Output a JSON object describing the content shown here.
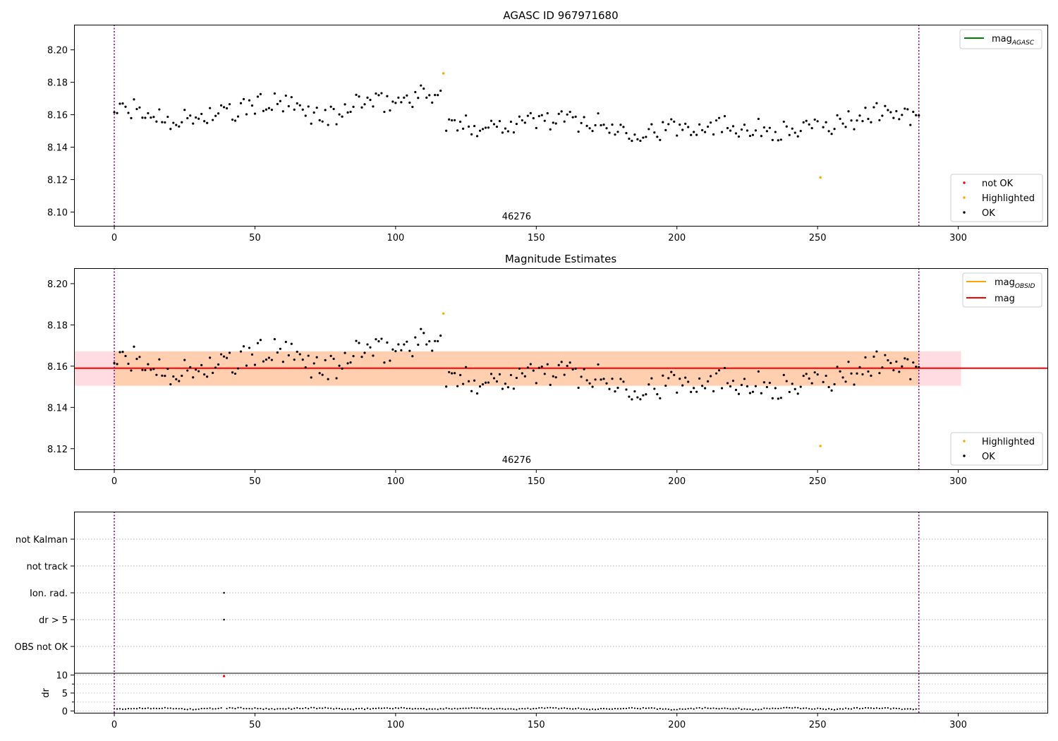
{
  "chart_data": [
    {
      "type": "scatter",
      "title": "AGASC ID 967971680",
      "xlim": [
        -14.3,
        331.7
      ],
      "ylim": [
        8.0915,
        8.2155
      ],
      "x_ticks": [
        0,
        50,
        100,
        150,
        200,
        250,
        300
      ],
      "y_ticks": [
        8.1,
        8.12,
        8.14,
        8.16,
        8.18,
        8.2
      ],
      "y_tick_labels": [
        "8.10",
        "8.12",
        "8.14",
        "8.16",
        "8.18",
        "8.20"
      ],
      "annotation": "46276",
      "annotation_x": 143,
      "obsid_bounds": [
        0,
        286
      ],
      "reference_lines": [
        {
          "name": "mag_AGASC",
          "label_main": "mag",
          "label_sub": "AGASC",
          "color": "#008000"
        }
      ],
      "legend_points": [
        {
          "label": "not OK",
          "color": "#ff0000"
        },
        {
          "label": "Highlighted",
          "color": "#ffa500"
        },
        {
          "label": "OK",
          "color": "#000000"
        }
      ],
      "highlighted_points": [
        [
          117,
          8.1855
        ],
        [
          251,
          8.1213
        ]
      ]
    },
    {
      "type": "scatter",
      "title": "Magnitude Estimates",
      "xlim": [
        -14.3,
        331.7
      ],
      "ylim": [
        8.11,
        8.2075
      ],
      "x_ticks": [
        0,
        50,
        100,
        150,
        200,
        250,
        300
      ],
      "y_ticks": [
        8.12,
        8.14,
        8.16,
        8.18,
        8.2
      ],
      "y_tick_labels": [
        "8.12",
        "8.14",
        "8.16",
        "8.18",
        "8.20"
      ],
      "annotation": "46276",
      "annotation_x": 143,
      "obsid_bounds": [
        0,
        286
      ],
      "mag_line": 8.159,
      "mag_band": [
        8.1505,
        8.1672
      ],
      "mag_band_xlim": [
        -14.3,
        301
      ],
      "obsid_band_xlim": [
        0,
        286
      ],
      "reference_lines": [
        {
          "name": "mag_OBSID",
          "label_main": "mag",
          "label_sub": "OBSID",
          "color": "#ffa500"
        },
        {
          "name": "mag",
          "label_main": "mag",
          "label_sub": "",
          "color": "#ff0000"
        }
      ],
      "legend_points": [
        {
          "label": "Highlighted",
          "color": "#ffa500"
        },
        {
          "label": "OK",
          "color": "#000000"
        }
      ],
      "highlighted_points": [
        [
          117,
          8.1855
        ],
        [
          251,
          8.1213
        ]
      ]
    },
    {
      "type": "scatter",
      "categories": [
        "OBS not OK",
        "dr > 5",
        "Ion. rad.",
        "not track",
        "not Kalman"
      ],
      "xlim": [
        -14.3,
        331.7
      ],
      "obsid_bounds": [
        0,
        286
      ],
      "flag_points": [
        {
          "x": 39,
          "category": "dr > 5"
        },
        {
          "x": 39,
          "category": "Ion. rad."
        }
      ]
    },
    {
      "type": "scatter",
      "ylabel": "dr",
      "xlim": [
        -14.3,
        331.7
      ],
      "ylim": [
        -0.5,
        10.5
      ],
      "x_ticks": [
        0,
        50,
        100,
        150,
        200,
        250,
        300
      ],
      "y_ticks": [
        0,
        5,
        10
      ],
      "y_tick_labels": [
        "0",
        "5",
        "10"
      ],
      "obsid_bounds": [
        0,
        286
      ],
      "outlier_points": [
        [
          39,
          9.7
        ]
      ]
    }
  ]
}
